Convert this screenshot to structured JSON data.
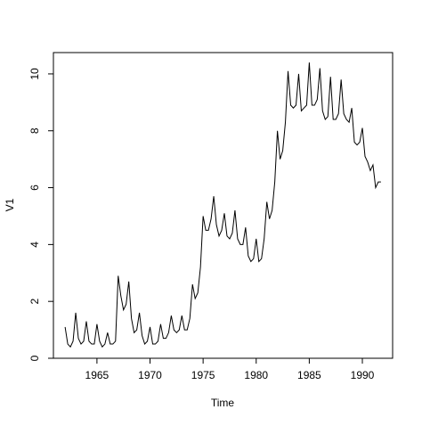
{
  "chart_data": {
    "type": "line",
    "xlabel": "Time",
    "ylabel": "V1",
    "x": [
      1962,
      1962.25,
      1962.5,
      1962.75,
      1963,
      1963.25,
      1963.5,
      1963.75,
      1964,
      1964.25,
      1964.5,
      1964.75,
      1965,
      1965.25,
      1965.5,
      1965.75,
      1966,
      1966.25,
      1966.5,
      1966.75,
      1967,
      1967.25,
      1967.5,
      1967.75,
      1968,
      1968.25,
      1968.5,
      1968.75,
      1969,
      1969.25,
      1969.5,
      1969.75,
      1970,
      1970.25,
      1970.5,
      1970.75,
      1971,
      1971.25,
      1971.5,
      1971.75,
      1972,
      1972.25,
      1972.5,
      1972.75,
      1973,
      1973.25,
      1973.5,
      1973.75,
      1974,
      1974.25,
      1974.5,
      1974.75,
      1975,
      1975.25,
      1975.5,
      1975.75,
      1976,
      1976.25,
      1976.5,
      1976.75,
      1977,
      1977.25,
      1977.5,
      1977.75,
      1978,
      1978.25,
      1978.5,
      1978.75,
      1979,
      1979.25,
      1979.5,
      1979.75,
      1980,
      1980.25,
      1980.5,
      1980.75,
      1981,
      1981.25,
      1981.5,
      1981.75,
      1982,
      1982.25,
      1982.5,
      1982.75,
      1983,
      1983.25,
      1983.5,
      1983.75,
      1984,
      1984.25,
      1984.5,
      1984.75,
      1985,
      1985.25,
      1985.5,
      1985.75,
      1986,
      1986.25,
      1986.5,
      1986.75,
      1987,
      1987.25,
      1987.5,
      1987.75,
      1988,
      1988.25,
      1988.5,
      1988.75,
      1989,
      1989.25,
      1989.5,
      1989.75,
      1990,
      1990.25,
      1990.5,
      1990.75,
      1991,
      1991.25,
      1991.5,
      1991.75
    ],
    "series": [
      {
        "name": "V1",
        "color": "#000000",
        "values": [
          1.1,
          0.5,
          0.4,
          0.6,
          1.6,
          0.7,
          0.5,
          0.6,
          1.3,
          0.6,
          0.5,
          0.5,
          1.2,
          0.6,
          0.4,
          0.5,
          0.9,
          0.5,
          0.5,
          0.6,
          2.9,
          2.2,
          1.7,
          1.9,
          2.7,
          1.4,
          0.9,
          1.0,
          1.6,
          0.8,
          0.5,
          0.6,
          1.1,
          0.5,
          0.5,
          0.6,
          1.2,
          0.7,
          0.7,
          0.9,
          1.5,
          1.0,
          0.9,
          1.0,
          1.5,
          1.0,
          1.0,
          1.4,
          2.6,
          2.1,
          2.3,
          3.2,
          5.0,
          4.5,
          4.5,
          4.9,
          5.7,
          4.7,
          4.3,
          4.5,
          5.1,
          4.3,
          4.2,
          4.4,
          5.2,
          4.2,
          4.0,
          4.0,
          4.6,
          3.6,
          3.4,
          3.5,
          4.2,
          3.4,
          3.5,
          4.2,
          5.5,
          4.9,
          5.2,
          6.2,
          8.0,
          7.0,
          7.3,
          8.3,
          10.1,
          8.9,
          8.8,
          8.9,
          10.0,
          8.7,
          8.8,
          8.9,
          10.4,
          8.9,
          8.9,
          9.1,
          10.2,
          8.7,
          8.4,
          8.5,
          9.9,
          8.4,
          8.4,
          8.6,
          9.8,
          8.6,
          8.4,
          8.3,
          8.8,
          7.6,
          7.5,
          7.6,
          8.1,
          7.1,
          6.9,
          6.6,
          6.8,
          6.0,
          6.2,
          6.2
        ]
      }
    ],
    "xlim": [
      1960.9,
      1992.85
    ],
    "ylim": [
      0,
      10.75
    ],
    "xticks": [
      1965,
      1970,
      1975,
      1980,
      1985,
      1990
    ],
    "yticks": [
      0,
      2,
      4,
      6,
      8,
      10
    ]
  }
}
